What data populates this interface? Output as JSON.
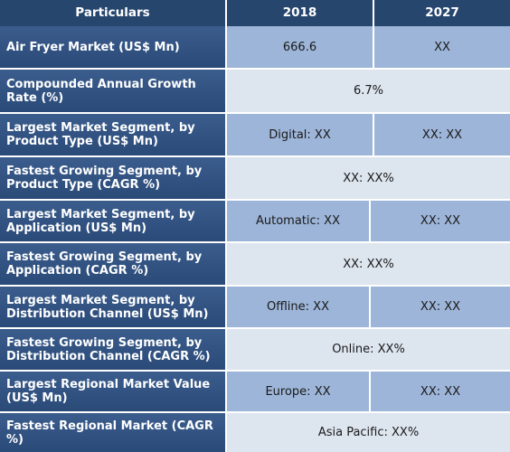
{
  "header": {
    "particulars": "Particulars",
    "year_1": "2018",
    "year_2": "2027"
  },
  "rows": [
    {
      "label": "Air Fryer Market (US$ Mn)",
      "v2018": "666.6",
      "v2027": "XX"
    },
    {
      "label": "Compounded Annual Growth Rate (%)",
      "value": "6.7%"
    },
    {
      "label": "Largest Market Segment, by Product Type (US$ Mn)",
      "v2018": "Digital: XX",
      "v2027": "XX: XX"
    },
    {
      "label": "Fastest Growing Segment, by Product Type (CAGR %)",
      "value": "XX: XX%"
    },
    {
      "label": "Largest Market Segment, by Application (US$ Mn)",
      "v2018": "Automatic: XX",
      "v2027": "XX: XX"
    },
    {
      "label": "Fastest Growing Segment, by Application (CAGR %)",
      "value": "XX: XX%"
    },
    {
      "label": "Largest Market Segment, by Distribution Channel (US$ Mn)",
      "v2018": "Offline: XX",
      "v2027": "XX: XX"
    },
    {
      "label": "Fastest Growing Segment, by Distribution Channel (CAGR %)",
      "value": "Online: XX%"
    },
    {
      "label": "Largest Regional Market Value (US$ Mn)",
      "v2018": "Europe: XX",
      "v2027": "XX: XX"
    },
    {
      "label": "Fastest Regional Market (CAGR %)",
      "value": "Asia Pacific: XX%"
    }
  ],
  "colors": {
    "header_bg": "#27466e",
    "label_bg": "#34568a",
    "value_dark_bg": "#9db5d8",
    "value_light_bg": "#dde5ef"
  }
}
